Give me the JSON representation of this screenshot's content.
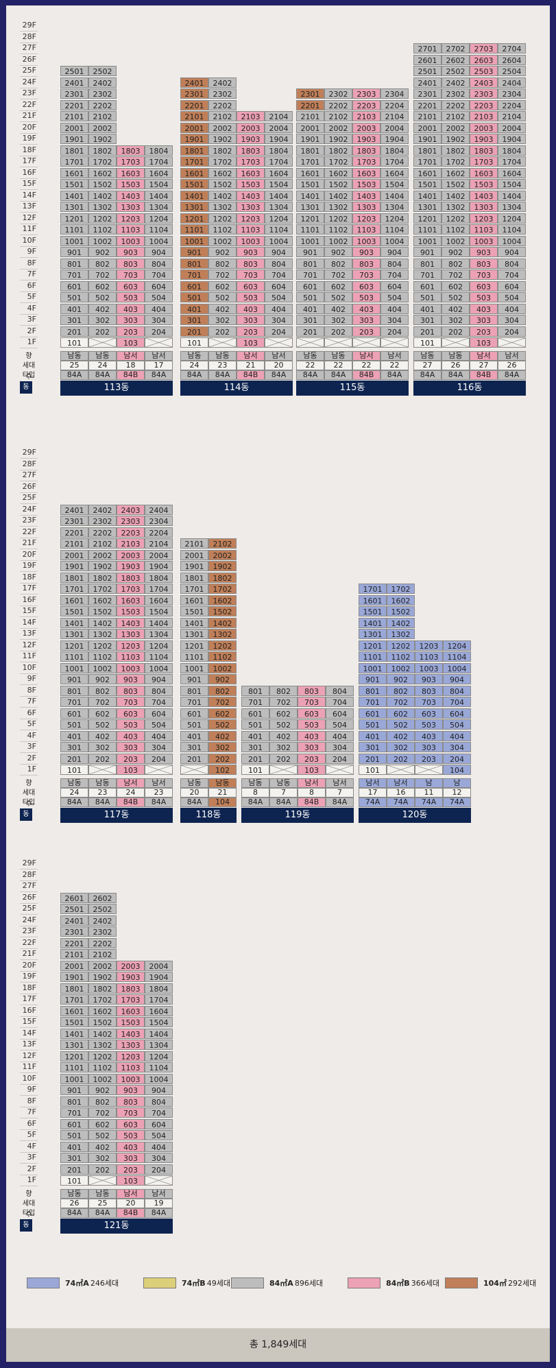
{
  "types": {
    "74A": {
      "color": "#9aa8d8"
    },
    "84A": {
      "color": "#bdbdbd"
    },
    "84B": {
      "color": "#eca1b5"
    },
    "104": {
      "color": "#c07f58"
    }
  },
  "floor_labels": [
    "29F",
    "28F",
    "27F",
    "26F",
    "25F",
    "24F",
    "23F",
    "22F",
    "21F",
    "20F",
    "19F",
    "18F",
    "17F",
    "16F",
    "15F",
    "14F",
    "13F",
    "12F",
    "11F",
    "10F",
    "9F",
    "8F",
    "7F",
    "6F",
    "5F",
    "4F",
    "3F",
    "2F",
    "1F"
  ],
  "row_labels": {
    "dir": "향",
    "count": "세대수",
    "type": "타입",
    "dong": "동"
  },
  "buildings": [
    {
      "block": 0,
      "x0": 79,
      "name": "113동",
      "line_type": [
        "84A",
        "84A",
        "84B",
        "84A"
      ],
      "dir": [
        "남동",
        "남동",
        "남서",
        "남서"
      ],
      "counts": [
        "25",
        "24",
        "18",
        "17"
      ],
      "top": [
        25,
        25,
        18,
        18
      ],
      "special": {},
      "empty1": [
        2,
        4
      ],
      "missing1": []
    },
    {
      "block": 0,
      "x0": 254,
      "name": "114동",
      "line_type": [
        "84A",
        "84A",
        "84B",
        "84A"
      ],
      "dir": [
        "남동",
        "남동",
        "남서",
        "남서"
      ],
      "counts": [
        "24",
        "23",
        "21",
        "20"
      ],
      "top": [
        24,
        24,
        21,
        21
      ],
      "special": {
        "2401": "104",
        "2301": "104",
        "2201": "104",
        "2101": "104",
        "2001": "104",
        "1901": "104",
        "1801": "104",
        "1701": "104",
        "1601": "104",
        "1501": "104",
        "1401": "104",
        "1301": "104",
        "1201": "104",
        "1101": "104",
        "1001": "104",
        "901": "104",
        "801": "104",
        "701": "104",
        "601": "104",
        "501": "104",
        "401": "104",
        "301": "104",
        "201": "104",
        "101": "84A"
      },
      "empty1": [
        2,
        4
      ],
      "missing1": [],
      "t104line": 1
    },
    {
      "block": 0,
      "x0": 423,
      "name": "115동",
      "line_type": [
        "84A",
        "84A",
        "84B",
        "84A"
      ],
      "dir": [
        "남동",
        "남동",
        "남서",
        "남서"
      ],
      "counts": [
        "22",
        "22",
        "22",
        "22"
      ],
      "top": [
        23,
        23,
        23,
        23
      ],
      "special": {
        "2301": "104",
        "2201": "104"
      },
      "empty1": [
        1,
        2,
        3,
        4
      ],
      "missing1": [],
      "t104line": 1
    },
    {
      "block": 0,
      "x0": 594,
      "name": "116동",
      "line_type": [
        "84A",
        "84A",
        "84B",
        "84A"
      ],
      "dir": [
        "남동",
        "남동",
        "남서",
        "남서"
      ],
      "counts": [
        "27",
        "26",
        "27",
        "26"
      ],
      "top": [
        27,
        27,
        27,
        27
      ],
      "special": {},
      "empty1": [
        2,
        4
      ],
      "missing1": [],
      "t104line": 1
    },
    {
      "block": 1,
      "x0": 79,
      "name": "117동",
      "line_type": [
        "84A",
        "84A",
        "84B",
        "84A"
      ],
      "dir": [
        "남동",
        "남동",
        "남서",
        "남서"
      ],
      "counts": [
        "24",
        "23",
        "24",
        "23"
      ],
      "top": [
        24,
        24,
        24,
        24
      ],
      "special": {},
      "empty1": [
        2,
        4
      ],
      "missing1": []
    },
    {
      "block": 1,
      "x0": 254,
      "name": "118동",
      "line_type": [
        "84A",
        "104"
      ],
      "dir": [
        "남동",
        "남동"
      ],
      "counts": [
        "20",
        "21"
      ],
      "top": [
        21,
        21
      ],
      "special": {},
      "empty1": [
        1
      ],
      "missing1": []
    },
    {
      "block": 1,
      "x0": 343,
      "name": "119동",
      "line_type": [
        "84A",
        "84A",
        "84B",
        "84A"
      ],
      "dir": [
        "남동",
        "남동",
        "남서",
        "남서"
      ],
      "counts": [
        "8",
        "7",
        "8",
        "7"
      ],
      "top": [
        8,
        8,
        8,
        8
      ],
      "special": {},
      "empty1": [
        2,
        4
      ],
      "missing1": []
    },
    {
      "block": 1,
      "x0": 514,
      "name": "120동",
      "line_type": [
        "74A",
        "74A",
        "74A",
        "74A"
      ],
      "dir": [
        "남서",
        "남서",
        "남",
        "남"
      ],
      "counts": [
        "17",
        "16",
        "11",
        "12"
      ],
      "top": [
        17,
        17,
        12,
        12
      ],
      "special": {},
      "empty1": [
        2,
        3
      ],
      "missing1": []
    },
    {
      "block": 2,
      "x0": 79,
      "name": "121동",
      "line_type": [
        "84A",
        "84A",
        "84B",
        "84A"
      ],
      "dir": [
        "남동",
        "남동",
        "남서",
        "남서"
      ],
      "counts": [
        "26",
        "25",
        "20",
        "19"
      ],
      "top": [
        26,
        26,
        20,
        20
      ],
      "special": {},
      "empty1": [
        2,
        4
      ],
      "missing1": []
    }
  ],
  "legend": [
    {
      "type": "74㎡A",
      "count": "246세대",
      "color": "#9aa8d8"
    },
    {
      "type": "74㎡B",
      "count": "49세대",
      "color": "#dccf7a"
    },
    {
      "type": "84㎡A",
      "count": "896세대",
      "color": "#bdbdbd"
    },
    {
      "type": "84㎡B",
      "count": "366세대",
      "color": "#eca1b5"
    },
    {
      "type": "104㎡",
      "count": "292세대",
      "color": "#c07f58"
    }
  ],
  "total": "총 1,849세대"
}
